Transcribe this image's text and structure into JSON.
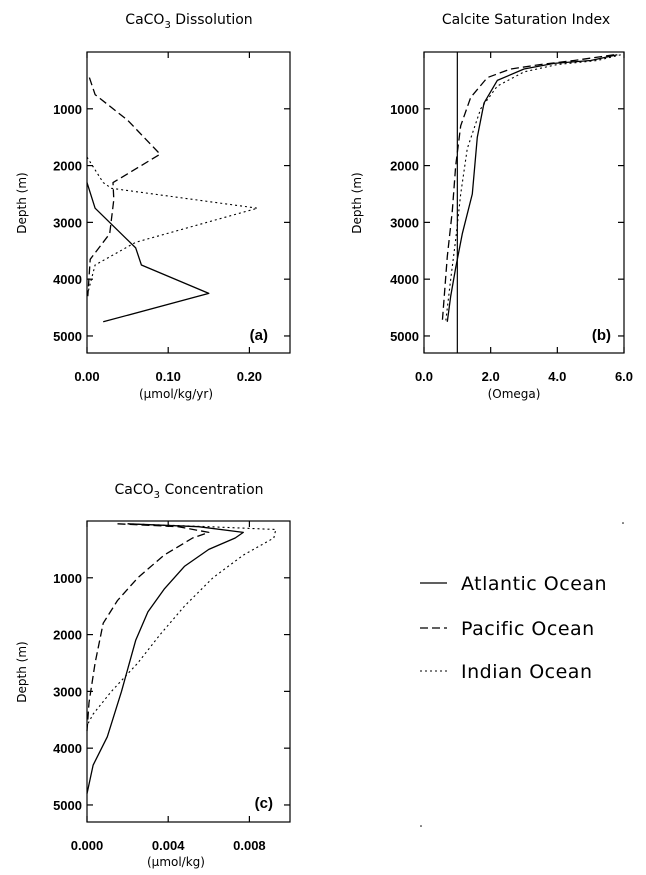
{
  "chart_data": [
    {
      "id": "a",
      "type": "line",
      "title": "CaCO",
      "title_sub": "3",
      "title_rest": " Dissolution",
      "xlabel": "(μmol/kg/yr)",
      "ylabel": "Depth (m)",
      "panel_label": "(a)",
      "xlim": [
        0,
        0.25
      ],
      "ylim": [
        5300,
        0
      ],
      "xticks": [
        "0.00",
        "0.10",
        "0.20"
      ],
      "xtick_values": [
        0,
        0.1,
        0.2
      ],
      "yticks": [
        "1000",
        "2000",
        "3000",
        "4000",
        "5000"
      ],
      "ytick_values": [
        1000,
        2000,
        3000,
        4000,
        5000
      ],
      "series": [
        {
          "name": "Atlantic Ocean",
          "dash": "solid",
          "points": [
            [
              0.0,
              2300
            ],
            [
              0.01,
              2750
            ],
            [
              0.06,
              3450
            ],
            [
              0.067,
              3750
            ],
            [
              0.15,
              4250
            ],
            [
              0.02,
              4750
            ]
          ]
        },
        {
          "name": "Pacific Ocean",
          "dash": "dashed",
          "points": [
            [
              0.003,
              450
            ],
            [
              0.01,
              750
            ],
            [
              0.05,
              1200
            ],
            [
              0.09,
              1800
            ],
            [
              0.032,
              2300
            ],
            [
              0.033,
              2600
            ],
            [
              0.028,
              3200
            ],
            [
              0.004,
              3650
            ],
            [
              0.001,
              4300
            ]
          ]
        },
        {
          "name": "Indian Ocean",
          "dash": "dotted",
          "points": [
            [
              0.0,
              1850
            ],
            [
              0.02,
              2300
            ],
            [
              0.03,
              2400
            ],
            [
              0.21,
              2750
            ],
            [
              0.06,
              3350
            ],
            [
              0.01,
              3750
            ],
            [
              0.0,
              4300
            ]
          ]
        }
      ]
    },
    {
      "id": "b",
      "type": "line",
      "title": "Calcite Saturation Index",
      "xlabel": "(Omega)",
      "ylabel": "Depth (m)",
      "panel_label": "(b)",
      "xlim": [
        0,
        6
      ],
      "ylim": [
        5300,
        0
      ],
      "xticks": [
        "0.0",
        "2.0",
        "4.0",
        "6.0"
      ],
      "xtick_values": [
        0,
        2,
        4,
        6
      ],
      "yticks": [
        "1000",
        "2000",
        "3000",
        "4000",
        "5000"
      ],
      "ytick_values": [
        1000,
        2000,
        3000,
        4000,
        5000
      ],
      "reference_line_x": 1,
      "series": [
        {
          "name": "Atlantic Ocean",
          "dash": "solid",
          "points": [
            [
              5.8,
              50
            ],
            [
              5.0,
              150
            ],
            [
              3.9,
              200
            ],
            [
              3.0,
              300
            ],
            [
              2.2,
              500
            ],
            [
              1.8,
              900
            ],
            [
              1.6,
              1500
            ],
            [
              1.45,
              2500
            ],
            [
              1.15,
              3200
            ],
            [
              0.95,
              3800
            ],
            [
              0.8,
              4300
            ],
            [
              0.7,
              4750
            ]
          ]
        },
        {
          "name": "Pacific Ocean",
          "dash": "dashed",
          "points": [
            [
              5.7,
              50
            ],
            [
              4.5,
              150
            ],
            [
              3.5,
              220
            ],
            [
              2.6,
              300
            ],
            [
              1.9,
              450
            ],
            [
              1.4,
              800
            ],
            [
              1.1,
              1300
            ],
            [
              0.95,
              2000
            ],
            [
              0.85,
              2800
            ],
            [
              0.7,
              3600
            ],
            [
              0.55,
              4750
            ]
          ]
        },
        {
          "name": "Indian Ocean",
          "dash": "dotted",
          "points": [
            [
              5.9,
              50
            ],
            [
              5.2,
              150
            ],
            [
              4.0,
              220
            ],
            [
              3.0,
              350
            ],
            [
              2.2,
              600
            ],
            [
              1.7,
              1000
            ],
            [
              1.3,
              1700
            ],
            [
              1.1,
              2500
            ],
            [
              0.95,
              3300
            ],
            [
              0.8,
              4000
            ],
            [
              0.65,
              4750
            ]
          ]
        }
      ]
    },
    {
      "id": "c",
      "type": "line",
      "title": "CaCO",
      "title_sub": "3",
      "title_rest": " Concentration",
      "xlabel": "(μmol/kg)",
      "ylabel": "Depth (m)",
      "panel_label": "(c)",
      "xlim": [
        0,
        0.01
      ],
      "ylim": [
        5300,
        0
      ],
      "xticks": [
        "0.000",
        "0.004",
        "0.008"
      ],
      "xtick_values": [
        0,
        0.004,
        0.008
      ],
      "yticks": [
        "1000",
        "2000",
        "3000",
        "4000",
        "5000"
      ],
      "ytick_values": [
        1000,
        2000,
        3000,
        4000,
        5000
      ],
      "series": [
        {
          "name": "Atlantic Ocean",
          "dash": "solid",
          "points": [
            [
              0.002,
              50
            ],
            [
              0.0055,
              100
            ],
            [
              0.0077,
              200
            ],
            [
              0.0073,
              300
            ],
            [
              0.006,
              500
            ],
            [
              0.0048,
              800
            ],
            [
              0.0038,
              1200
            ],
            [
              0.003,
              1600
            ],
            [
              0.0024,
              2100
            ],
            [
              0.0017,
              3000
            ],
            [
              0.001,
              3800
            ],
            [
              0.0003,
              4300
            ],
            [
              0.0,
              4800
            ]
          ]
        },
        {
          "name": "Pacific Ocean",
          "dash": "dashed",
          "points": [
            [
              0.0015,
              50
            ],
            [
              0.0045,
              100
            ],
            [
              0.006,
              200
            ],
            [
              0.0052,
              300
            ],
            [
              0.0038,
              600
            ],
            [
              0.0025,
              1000
            ],
            [
              0.0015,
              1400
            ],
            [
              0.0008,
              1800
            ],
            [
              0.0004,
              2500
            ],
            [
              0.0001,
              3200
            ],
            [
              0.0,
              3700
            ]
          ]
        },
        {
          "name": "Indian Ocean",
          "dash": "dotted",
          "points": [
            [
              0.002,
              50
            ],
            [
              0.006,
              100
            ],
            [
              0.0093,
              150
            ],
            [
              0.0092,
              300
            ],
            [
              0.0077,
              600
            ],
            [
              0.0062,
              1000
            ],
            [
              0.0048,
              1500
            ],
            [
              0.0036,
              2000
            ],
            [
              0.0025,
              2500
            ],
            [
              0.0012,
              3000
            ],
            [
              0.0003,
              3400
            ],
            [
              0.0,
              3600
            ]
          ]
        }
      ]
    }
  ],
  "legend": {
    "items": [
      {
        "label": "Atlantic Ocean",
        "dash": "solid"
      },
      {
        "label": "Pacific Ocean",
        "dash": "dashed"
      },
      {
        "label": "Indian Ocean",
        "dash": "dotted"
      }
    ]
  }
}
